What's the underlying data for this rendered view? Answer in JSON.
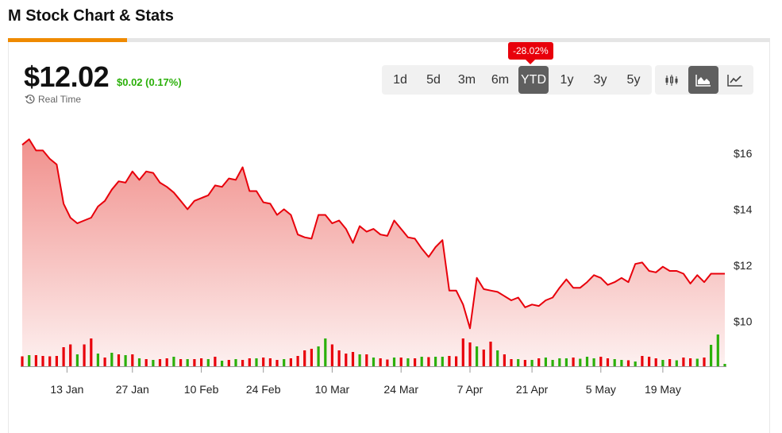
{
  "header": {
    "title": "M Stock Chart & Stats"
  },
  "quote": {
    "price": "$12.02",
    "change": "$0.02 (0.17%)",
    "realtime_label": "Real Time",
    "ytd_badge": "-28.02%"
  },
  "colors": {
    "accent": "#ef8a00",
    "down": "#e8000b",
    "up": "#2bb00a",
    "badge": "#e8000b",
    "line": "#e8000b",
    "area_top": "#f08a86"
  },
  "ranges": [
    {
      "label": "1d",
      "active": false
    },
    {
      "label": "5d",
      "active": false
    },
    {
      "label": "3m",
      "active": false
    },
    {
      "label": "6m",
      "active": false
    },
    {
      "label": "YTD",
      "active": true
    },
    {
      "label": "1y",
      "active": false
    },
    {
      "label": "3y",
      "active": false
    },
    {
      "label": "5y",
      "active": false
    }
  ],
  "chart_types": [
    {
      "name": "candlestick-icon",
      "active": false
    },
    {
      "name": "area-chart-icon",
      "active": true
    },
    {
      "name": "line-chart-icon",
      "active": false
    }
  ],
  "chart_data": {
    "type": "area",
    "title": "",
    "xlabel": "",
    "ylabel": "",
    "ylim": [
      8.0,
      17.5
    ],
    "ytick_values": [
      10,
      12,
      14,
      16
    ],
    "ytick_labels": [
      "$10",
      "$12",
      "$14",
      "$16"
    ],
    "xtick_labels": [
      "13 Jan",
      "27 Jan",
      "10 Feb",
      "24 Feb",
      "10 Mar",
      "24 Mar",
      "7 Apr",
      "21 Apr",
      "5 May",
      "19 May"
    ],
    "xtick_index": [
      6.5,
      16,
      26,
      35,
      45,
      55,
      65,
      74,
      84,
      93
    ],
    "grid": false,
    "legend": "none",
    "series": [
      {
        "values": [
          16.3,
          16.5,
          16.1,
          16.1,
          15.8,
          15.6,
          14.2,
          13.7,
          13.5,
          13.6,
          13.7,
          14.1,
          14.3,
          14.7,
          15.0,
          14.95,
          15.35,
          15.05,
          15.35,
          15.3,
          14.95,
          14.8,
          14.6,
          14.3,
          14.0,
          14.3,
          14.4,
          14.5,
          14.85,
          14.8,
          15.1,
          15.05,
          15.5,
          14.65,
          14.65,
          14.25,
          14.2,
          13.8,
          14.0,
          13.8,
          13.1,
          13.0,
          12.95,
          13.8,
          13.8,
          13.5,
          13.6,
          13.3,
          12.8,
          13.4,
          13.2,
          13.3,
          13.1,
          13.05,
          13.6,
          13.3,
          13.0,
          12.95,
          12.6,
          12.3,
          12.65,
          12.9,
          11.1,
          11.1,
          10.6,
          9.75,
          11.55,
          11.15,
          11.1,
          11.05,
          10.9,
          10.75,
          10.85,
          10.5,
          10.6,
          10.55,
          10.75,
          10.85,
          11.2,
          11.5,
          11.2,
          11.2,
          11.4,
          11.65,
          11.55,
          11.3,
          11.4,
          11.55,
          11.4,
          12.05,
          12.1,
          11.8,
          11.75,
          11.95,
          11.8,
          11.8,
          11.7,
          11.35,
          11.65,
          11.4,
          11.7,
          11.7,
          11.7
        ],
        "volume": [
          0.25,
          0.28,
          0.28,
          0.26,
          0.25,
          0.26,
          0.48,
          0.55,
          0.3,
          0.55,
          0.7,
          0.32,
          0.22,
          0.34,
          0.3,
          0.28,
          0.3,
          0.2,
          0.18,
          0.16,
          0.18,
          0.2,
          0.24,
          0.18,
          0.18,
          0.18,
          0.2,
          0.18,
          0.24,
          0.14,
          0.16,
          0.18,
          0.16,
          0.2,
          0.2,
          0.22,
          0.2,
          0.16,
          0.18,
          0.2,
          0.26,
          0.4,
          0.44,
          0.5,
          0.7,
          0.55,
          0.4,
          0.32,
          0.36,
          0.3,
          0.3,
          0.22,
          0.2,
          0.17,
          0.22,
          0.22,
          0.2,
          0.2,
          0.24,
          0.23,
          0.24,
          0.24,
          0.26,
          0.25,
          0.7,
          0.6,
          0.5,
          0.42,
          0.62,
          0.4,
          0.3,
          0.18,
          0.18,
          0.16,
          0.16,
          0.2,
          0.22,
          0.16,
          0.2,
          0.2,
          0.22,
          0.19,
          0.24,
          0.2,
          0.24,
          0.2,
          0.18,
          0.16,
          0.15,
          0.12,
          0.26,
          0.24,
          0.2,
          0.16,
          0.18,
          0.15,
          0.22,
          0.2,
          0.19,
          0.22,
          0.54,
          0.8,
          0.06
        ],
        "volume_direction": [
          "d",
          "u",
          "d",
          "d",
          "d",
          "d",
          "d",
          "d",
          "u",
          "d",
          "d",
          "u",
          "d",
          "u",
          "d",
          "u",
          "d",
          "u",
          "d",
          "u",
          "d",
          "d",
          "u",
          "d",
          "u",
          "d",
          "d",
          "u",
          "d",
          "u",
          "d",
          "u",
          "d",
          "d",
          "u",
          "d",
          "d",
          "d",
          "u",
          "d",
          "d",
          "d",
          "d",
          "u",
          "u",
          "d",
          "d",
          "d",
          "d",
          "u",
          "d",
          "u",
          "d",
          "d",
          "u",
          "d",
          "u",
          "d",
          "u",
          "d",
          "u",
          "u",
          "d",
          "d",
          "d",
          "d",
          "u",
          "d",
          "d",
          "u",
          "d",
          "d",
          "u",
          "d",
          "u",
          "d",
          "u",
          "u",
          "u",
          "u",
          "d",
          "u",
          "u",
          "u",
          "d",
          "d",
          "u",
          "u",
          "d",
          "u",
          "d",
          "d",
          "d",
          "u",
          "d",
          "u",
          "d",
          "d",
          "u",
          "d",
          "u",
          "u",
          "u"
        ]
      }
    ]
  }
}
